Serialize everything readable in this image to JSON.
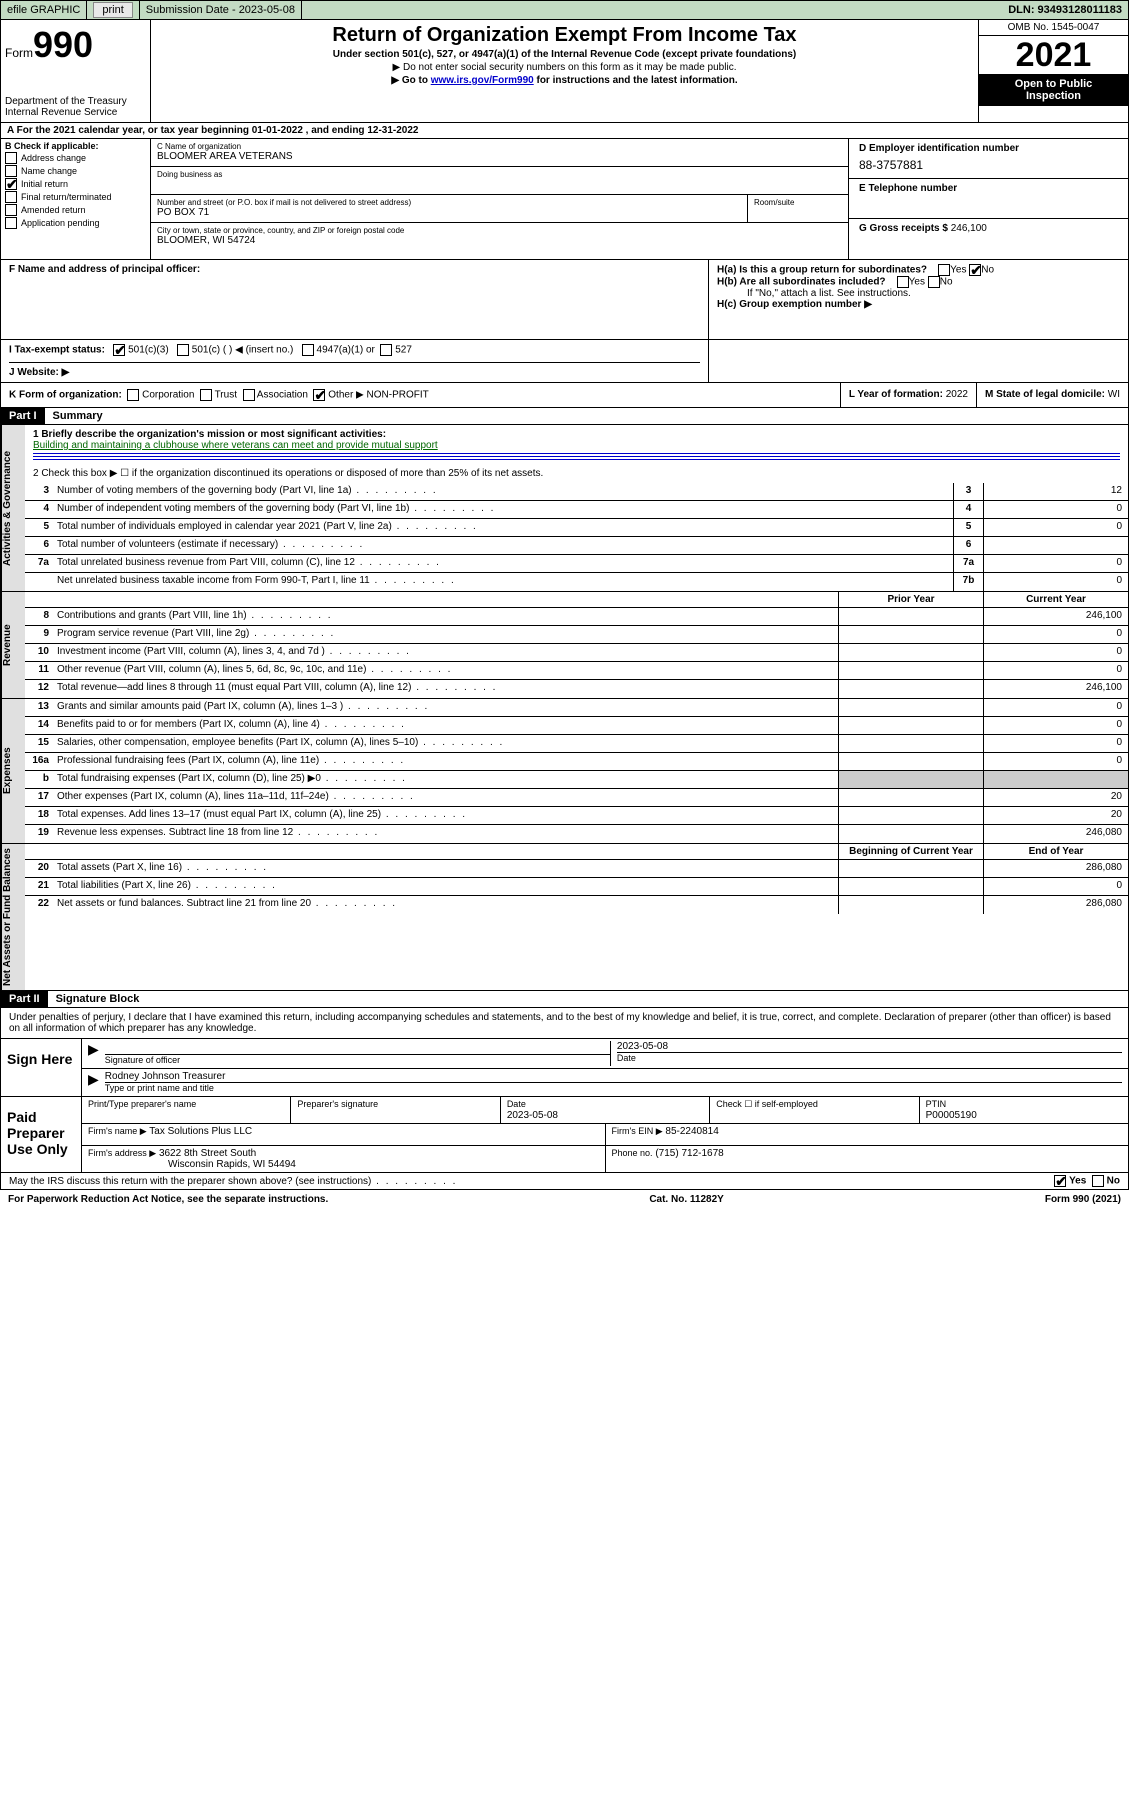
{
  "topbar": {
    "efile_label": "efile GRAPHIC",
    "print_btn": "print",
    "submission_label": "Submission Date - 2023-05-08",
    "dln": "DLN: 93493128011183"
  },
  "header": {
    "form_word": "Form",
    "form_num": "990",
    "dept": "Department of the Treasury",
    "irs": "Internal Revenue Service",
    "title": "Return of Organization Exempt From Income Tax",
    "subtitle": "Under section 501(c), 527, or 4947(a)(1) of the Internal Revenue Code (except private foundations)",
    "note1": "▶ Do not enter social security numbers on this form as it may be made public.",
    "note2_pre": "▶ Go to ",
    "note2_link": "www.irs.gov/Form990",
    "note2_post": " for instructions and the latest information.",
    "omb": "OMB No. 1545-0047",
    "year": "2021",
    "inspect1": "Open to Public",
    "inspect2": "Inspection"
  },
  "row_a": "A For the 2021 calendar year, or tax year beginning 01-01-2022   , and ending 12-31-2022",
  "box_b": {
    "title": "B Check if applicable:",
    "items": [
      "Address change",
      "Name change",
      "Initial return",
      "Final return/terminated",
      "Amended return",
      "Application pending"
    ],
    "checked_idx": 2
  },
  "box_c": {
    "name_lbl": "C Name of organization",
    "name": "BLOOMER AREA VETERANS",
    "dba_lbl": "Doing business as",
    "dba": "",
    "addr_lbl": "Number and street (or P.O. box if mail is not delivered to street address)",
    "addr": "PO BOX 71",
    "room_lbl": "Room/suite",
    "city_lbl": "City or town, state or province, country, and ZIP or foreign postal code",
    "city": "BLOOMER, WI  54724"
  },
  "box_d": {
    "ein_lbl": "D Employer identification number",
    "ein": "88-3757881",
    "tel_lbl": "E Telephone number",
    "tel": "",
    "gross_lbl": "G Gross receipts $",
    "gross": "246,100"
  },
  "row_f": {
    "f_lbl": "F  Name and address of principal officer:",
    "ha": "H(a)  Is this a group return for subordinates?",
    "hb": "H(b)  Are all subordinates included?",
    "hb_note": "If \"No,\" attach a list. See instructions.",
    "hc": "H(c)  Group exemption number ▶",
    "yes": "Yes",
    "no": "No"
  },
  "row_i": {
    "lbl": "I   Tax-exempt status:",
    "opt1": "501(c)(3)",
    "opt2": "501(c) (  ) ◀ (insert no.)",
    "opt3": "4947(a)(1) or",
    "opt4": "527"
  },
  "row_j": {
    "lbl": "J   Website: ▶"
  },
  "row_k": {
    "k_lbl": "K Form of organization:",
    "opts": [
      "Corporation",
      "Trust",
      "Association",
      "Other ▶"
    ],
    "other_val": "NON-PROFIT",
    "l_lbl": "L Year of formation:",
    "l_val": "2022",
    "m_lbl": "M State of legal domicile:",
    "m_val": "WI"
  },
  "parts": {
    "p1": "Part I",
    "p1_title": "Summary",
    "p2": "Part II",
    "p2_title": "Signature Block"
  },
  "summary": {
    "q1": "1  Briefly describe the organization's mission or most significant activities:",
    "mission": "Building and maintaining a clubhouse where veterans can meet and provide mutual support",
    "q2": "2   Check this box ▶ ☐  if the organization discontinued its operations or disposed of more than 25% of its net assets."
  },
  "gov_lines": [
    {
      "n": "3",
      "d": "Number of voting members of the governing body (Part VI, line 1a)",
      "m": "3",
      "v": "12"
    },
    {
      "n": "4",
      "d": "Number of independent voting members of the governing body (Part VI, line 1b)",
      "m": "4",
      "v": "0"
    },
    {
      "n": "5",
      "d": "Total number of individuals employed in calendar year 2021 (Part V, line 2a)",
      "m": "5",
      "v": "0"
    },
    {
      "n": "6",
      "d": "Total number of volunteers (estimate if necessary)",
      "m": "6",
      "v": ""
    },
    {
      "n": "7a",
      "d": "Total unrelated business revenue from Part VIII, column (C), line 12",
      "m": "7a",
      "v": "0"
    },
    {
      "n": "",
      "d": "Net unrelated business taxable income from Form 990-T, Part I, line 11",
      "m": "7b",
      "v": "0"
    }
  ],
  "col_hdrs": {
    "prior": "Prior Year",
    "current": "Current Year",
    "begin": "Beginning of Current Year",
    "end": "End of Year"
  },
  "rev_lines": [
    {
      "n": "8",
      "d": "Contributions and grants (Part VIII, line 1h)",
      "p": "",
      "c": "246,100"
    },
    {
      "n": "9",
      "d": "Program service revenue (Part VIII, line 2g)",
      "p": "",
      "c": "0"
    },
    {
      "n": "10",
      "d": "Investment income (Part VIII, column (A), lines 3, 4, and 7d )",
      "p": "",
      "c": "0"
    },
    {
      "n": "11",
      "d": "Other revenue (Part VIII, column (A), lines 5, 6d, 8c, 9c, 10c, and 11e)",
      "p": "",
      "c": "0"
    },
    {
      "n": "12",
      "d": "Total revenue—add lines 8 through 11 (must equal Part VIII, column (A), line 12)",
      "p": "",
      "c": "246,100"
    }
  ],
  "exp_lines": [
    {
      "n": "13",
      "d": "Grants and similar amounts paid (Part IX, column (A), lines 1–3 )",
      "p": "",
      "c": "0"
    },
    {
      "n": "14",
      "d": "Benefits paid to or for members (Part IX, column (A), line 4)",
      "p": "",
      "c": "0"
    },
    {
      "n": "15",
      "d": "Salaries, other compensation, employee benefits (Part IX, column (A), lines 5–10)",
      "p": "",
      "c": "0"
    },
    {
      "n": "16a",
      "d": "Professional fundraising fees (Part IX, column (A), line 11e)",
      "p": "",
      "c": "0"
    },
    {
      "n": "b",
      "d": "Total fundraising expenses (Part IX, column (D), line 25) ▶0",
      "p": "shaded",
      "c": "shaded"
    },
    {
      "n": "17",
      "d": "Other expenses (Part IX, column (A), lines 11a–11d, 11f–24e)",
      "p": "",
      "c": "20"
    },
    {
      "n": "18",
      "d": "Total expenses. Add lines 13–17 (must equal Part IX, column (A), line 25)",
      "p": "",
      "c": "20"
    },
    {
      "n": "19",
      "d": "Revenue less expenses. Subtract line 18 from line 12",
      "p": "",
      "c": "246,080"
    }
  ],
  "net_lines": [
    {
      "n": "20",
      "d": "Total assets (Part X, line 16)",
      "p": "",
      "c": "286,080"
    },
    {
      "n": "21",
      "d": "Total liabilities (Part X, line 26)",
      "p": "",
      "c": "0"
    },
    {
      "n": "22",
      "d": "Net assets or fund balances. Subtract line 21 from line 20",
      "p": "",
      "c": "286,080"
    }
  ],
  "sig": {
    "decl": "Under penalties of perjury, I declare that I have examined this return, including accompanying schedules and statements, and to the best of my knowledge and belief, it is true, correct, and complete. Declaration of preparer (other than officer) is based on all information of which preparer has any knowledge.",
    "sign_here": "Sign Here",
    "sig_officer": "Signature of officer",
    "date_lbl": "Date",
    "sig_date": "2023-05-08",
    "officer_name": "Rodney Johnson Treasurer",
    "type_name": "Type or print name and title",
    "paid": "Paid Preparer Use Only",
    "p_name_lbl": "Print/Type preparer's name",
    "p_sig_lbl": "Preparer's signature",
    "p_date_lbl": "Date",
    "p_date": "2023-05-08",
    "p_check": "Check ☐ if self-employed",
    "ptin_lbl": "PTIN",
    "ptin": "P00005190",
    "firm_name_lbl": "Firm's name   ▶",
    "firm_name": "Tax Solutions Plus LLC",
    "firm_ein_lbl": "Firm's EIN ▶",
    "firm_ein": "85-2240814",
    "firm_addr_lbl": "Firm's address ▶",
    "firm_addr1": "3622 8th Street South",
    "firm_addr2": "Wisconsin Rapids, WI  54494",
    "phone_lbl": "Phone no.",
    "phone": "(715) 712-1678"
  },
  "q_irs": "May the IRS discuss this return with the preparer shown above? (see instructions)",
  "footer": {
    "left": "For Paperwork Reduction Act Notice, see the separate instructions.",
    "mid": "Cat. No. 11282Y",
    "right": "Form 990 (2021)"
  },
  "vtabs": {
    "gov": "Activities & Governance",
    "rev": "Revenue",
    "exp": "Expenses",
    "net": "Net Assets or Fund Balances"
  }
}
